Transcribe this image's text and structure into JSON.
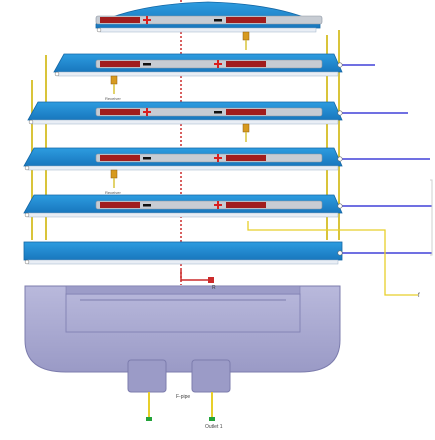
{
  "diagram": {
    "plates": [
      {
        "id": "plate-1",
        "layout": "pos-left",
        "valve": "right",
        "valve_label": "",
        "pipe": false
      },
      {
        "id": "plate-2",
        "layout": "neg-left",
        "valve": "left",
        "valve_label": "Receiver",
        "pipe": true
      },
      {
        "id": "plate-3",
        "layout": "pos-left",
        "valve": "right",
        "valve_label": "",
        "pipe": true
      },
      {
        "id": "plate-4",
        "layout": "neg-left",
        "valve": "left",
        "valve_label": "Receiver",
        "pipe": true
      },
      {
        "id": "plate-5",
        "layout": "neg-left",
        "valve": "none",
        "valve_label": "",
        "pipe": true
      },
      {
        "id": "plate-6",
        "layout": "none",
        "valve": "none",
        "valve_label": "",
        "pipe": true
      }
    ],
    "labels": {
      "port_left": "F-pipe",
      "port_right": "Outlet 1",
      "yellow_end": "f",
      "center_tag": "R"
    },
    "colors": {
      "blue_plate": "#1f8ad2",
      "plate_dark": "#1568a6",
      "electrode_red": "#a11d1d",
      "electrode_grey": "#c7ccd3",
      "pipe_blue": "#1a1ad0",
      "yellow": "#e8cf2a",
      "vessel": "#a7a7cf",
      "vessel_dark": "#8f8fbd"
    }
  }
}
